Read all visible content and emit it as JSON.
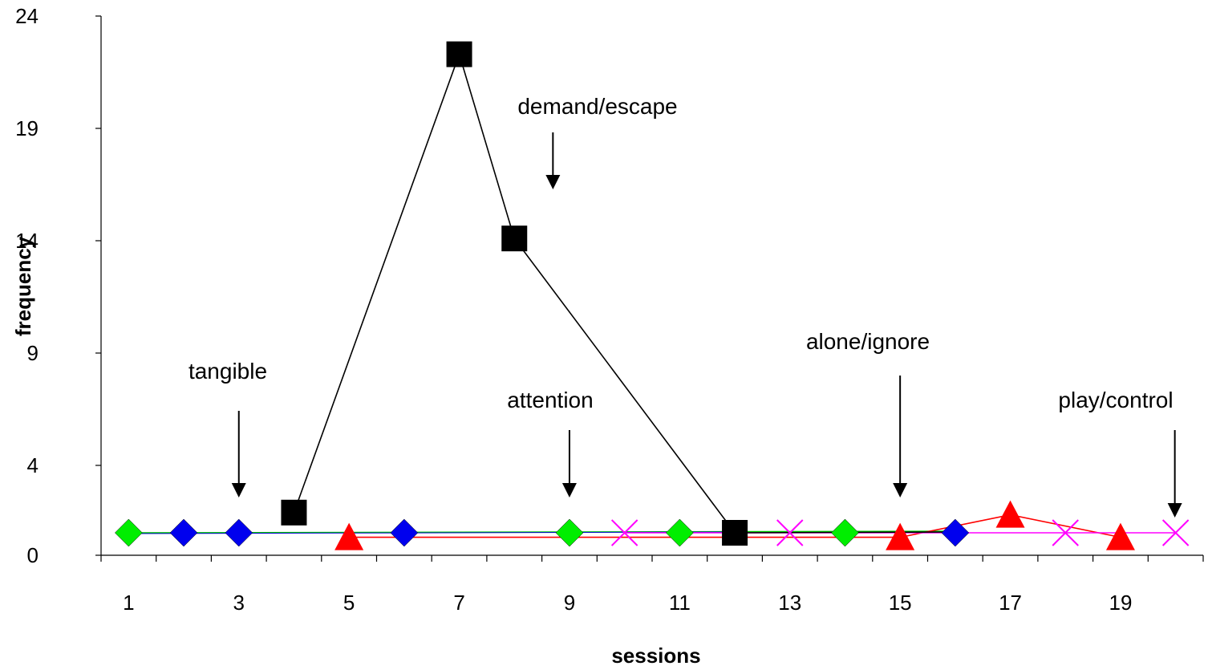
{
  "chart_data": {
    "type": "line",
    "title": "",
    "xlabel": "sessions",
    "ylabel": "frequency",
    "xlim": [
      0.5,
      20.5
    ],
    "ylim": [
      0,
      24
    ],
    "x_tick_labels": [
      "1",
      "3",
      "5",
      "7",
      "9",
      "11",
      "13",
      "15",
      "17",
      "19"
    ],
    "y_tick_labels": [
      "0",
      "4",
      "9",
      "14",
      "19",
      "24"
    ],
    "grid": false,
    "legend": "none",
    "series": [
      {
        "condition": "tangible",
        "color": "#0000ee",
        "marker": "diamond",
        "line": false,
        "points": [
          [
            2,
            1
          ],
          [
            3,
            1
          ],
          [
            6,
            1
          ],
          [
            16,
            1
          ]
        ]
      },
      {
        "condition": "demand/escape",
        "color": "#000000",
        "marker": "square",
        "line": true,
        "points": [
          [
            4,
            1.9
          ],
          [
            7,
            22.3
          ],
          [
            8,
            14.1
          ],
          [
            12,
            1
          ]
        ]
      },
      {
        "condition": "attention",
        "color": "#00ee00",
        "marker": "diamond",
        "line": false,
        "points": [
          [
            1,
            1
          ],
          [
            9,
            1
          ],
          [
            11,
            1
          ],
          [
            14,
            1
          ]
        ]
      },
      {
        "condition": "alone/ignore",
        "color": "#ff0000",
        "marker": "triangle",
        "line": true,
        "points": [
          [
            5,
            0.8
          ],
          [
            15,
            0.8
          ],
          [
            17,
            1.8
          ],
          [
            19,
            0.8
          ]
        ]
      },
      {
        "condition": "play/control",
        "color": "#ff00ff",
        "marker": "x",
        "line": true,
        "points": [
          [
            10,
            1
          ],
          [
            13,
            1
          ],
          [
            18,
            1
          ],
          [
            20,
            1
          ]
        ]
      }
    ],
    "annotations": [
      {
        "text": "tangible",
        "arrow_x": 3
      },
      {
        "text": "demand/escape",
        "arrow_x": 8.7
      },
      {
        "text": "attention",
        "arrow_x": 9
      },
      {
        "text": "alone/ignore",
        "arrow_x": 15
      },
      {
        "text": "play/control",
        "arrow_x": 20
      }
    ]
  }
}
